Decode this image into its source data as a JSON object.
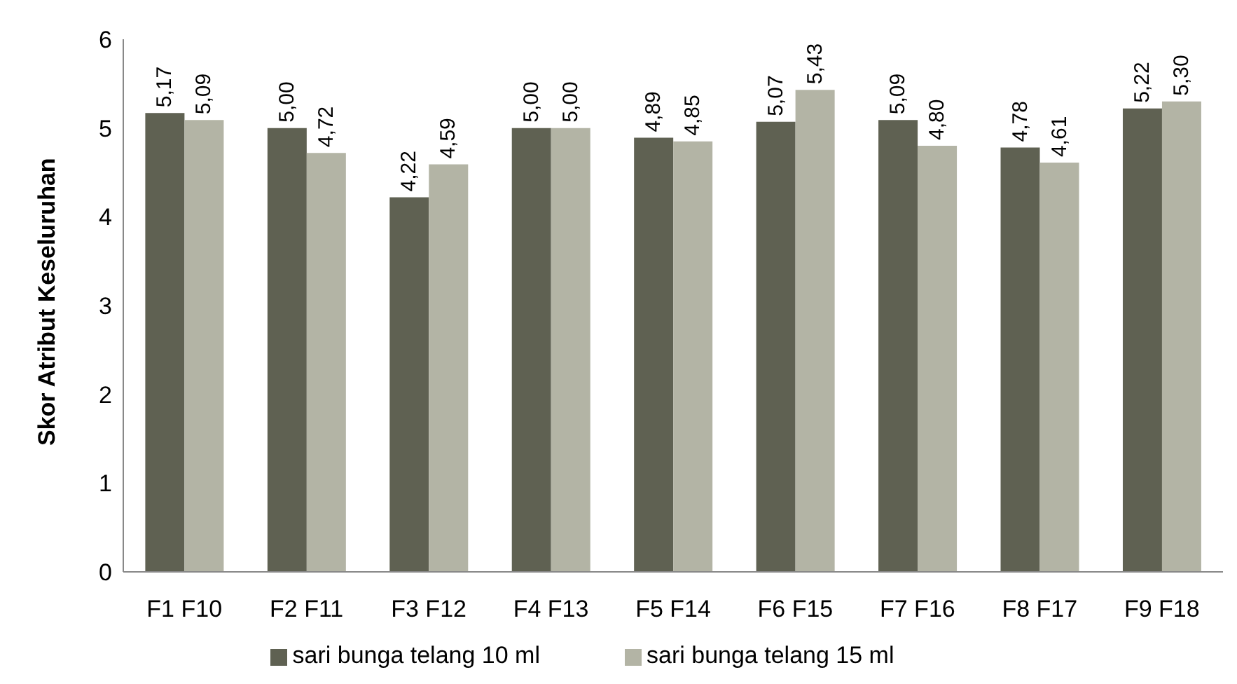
{
  "chart_data": {
    "type": "bar",
    "ylabel": "Skor Atribut Keseluruhan",
    "categories": [
      "F1 F10",
      "F2 F11",
      "F3 F12",
      "F4 F13",
      "F5 F14",
      "F6 F15",
      "F7 F16",
      "F8 F17",
      "F9 F18"
    ],
    "series": [
      {
        "name": "sari bunga telang 10 ml",
        "color": "#5f6152",
        "values": [
          5.17,
          5.0,
          4.22,
          5.0,
          4.89,
          5.07,
          5.09,
          4.78,
          5.22
        ],
        "value_labels": [
          "5,17",
          "5,00",
          "4,22",
          "5,00",
          "4,89",
          "5,07",
          "5,09",
          "4,78",
          "5,22"
        ]
      },
      {
        "name": "sari bunga telang 15 ml",
        "color": "#b3b4a5",
        "values": [
          5.09,
          4.72,
          4.59,
          5.0,
          4.85,
          5.43,
          4.8,
          4.61,
          5.3
        ],
        "value_labels": [
          "5,09",
          "4,72",
          "4,59",
          "5,00",
          "4,85",
          "5,43",
          "4,80",
          "4,61",
          "5,30"
        ]
      }
    ],
    "ylim": [
      0,
      6
    ],
    "yticks": [
      0,
      1,
      2,
      3,
      4,
      5,
      6
    ],
    "grid": false,
    "legend": "bottom"
  }
}
